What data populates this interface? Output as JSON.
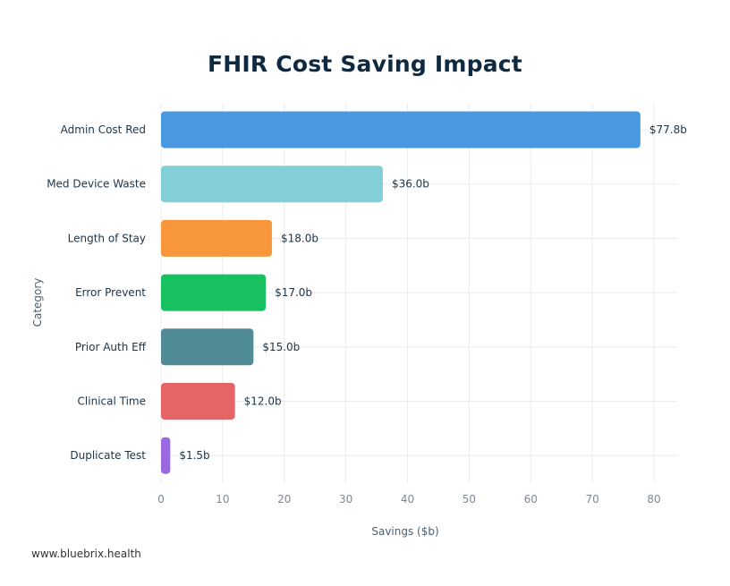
{
  "chart_data": {
    "type": "bar",
    "orientation": "horizontal",
    "title": "FHIR Cost Saving Impact",
    "xlabel": "Savings ($b)",
    "ylabel": "Category",
    "categories": [
      "Admin Cost Red",
      "Med Device Waste",
      "Length of Stay",
      "Error Prevent",
      "Prior Auth Eff",
      "Clinical Time",
      "Duplicate Test"
    ],
    "values": [
      77.8,
      36.0,
      18.0,
      17.0,
      15.0,
      12.0,
      1.5
    ],
    "data_labels": [
      "$77.8b",
      "$36.0b",
      "$18.0b",
      "$17.0b",
      "$15.0b",
      "$12.0b",
      "$1.5b"
    ],
    "colors": [
      "#4a98e0",
      "#82cfd8",
      "#f8963b",
      "#17c15f",
      "#518b96",
      "#e36566",
      "#9a68e0"
    ],
    "xlim": [
      0,
      84
    ],
    "xticks": [
      0,
      10,
      20,
      30,
      40,
      50,
      60,
      70,
      80
    ],
    "grid": true
  },
  "footer": "www.bluebrix.health"
}
